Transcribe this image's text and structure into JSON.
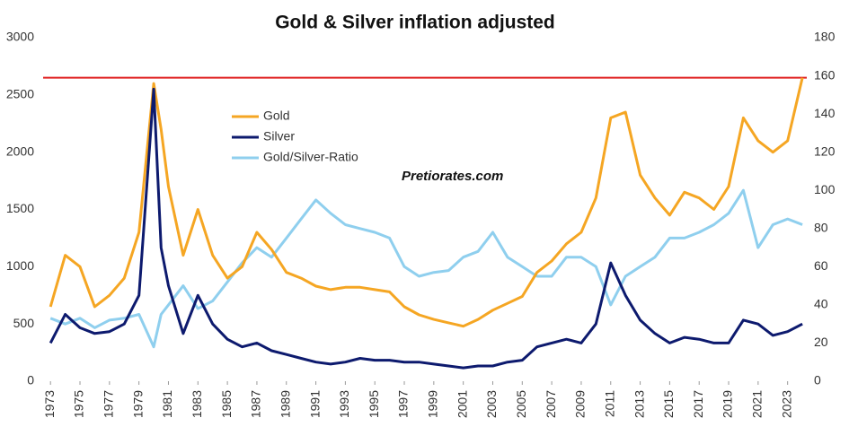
{
  "chart_data": {
    "type": "line",
    "title": "Gold & Silver inflation adjusted",
    "annotation": "Pretiorates.com",
    "x": [
      1973,
      1974,
      1975,
      1976,
      1977,
      1978,
      1979,
      1980,
      1980.5,
      1981,
      1982,
      1983,
      1984,
      1985,
      1986,
      1987,
      1988,
      1989,
      1990,
      1991,
      1992,
      1993,
      1994,
      1995,
      1996,
      1997,
      1998,
      1999,
      2000,
      2001,
      2002,
      2003,
      2004,
      2005,
      2006,
      2007,
      2008,
      2009,
      2010,
      2011,
      2012,
      2013,
      2014,
      2015,
      2016,
      2017,
      2018,
      2019,
      2020,
      2021,
      2022,
      2023,
      2024
    ],
    "series": [
      {
        "name": "Gold",
        "color": "#f5a623",
        "values": [
          650,
          1100,
          1000,
          650,
          750,
          900,
          1300,
          2600,
          2200,
          1700,
          1100,
          1500,
          1100,
          900,
          1000,
          1300,
          1150,
          950,
          900,
          830,
          800,
          820,
          820,
          800,
          780,
          650,
          580,
          540,
          510,
          480,
          540,
          620,
          680,
          740,
          950,
          1050,
          1200,
          1300,
          1600,
          2300,
          2350,
          1800,
          1600,
          1450,
          1650,
          1600,
          1500,
          1700,
          2300,
          2100,
          2000,
          2100,
          2650
        ]
      },
      {
        "name": "Silver",
        "color": "#0d1a6e",
        "axis": "y2",
        "values": [
          20,
          35,
          28,
          25,
          26,
          30,
          45,
          153,
          70,
          50,
          25,
          45,
          30,
          22,
          18,
          20,
          16,
          14,
          12,
          10,
          9,
          10,
          12,
          11,
          11,
          10,
          10,
          9,
          8,
          7,
          8,
          8,
          10,
          11,
          18,
          20,
          22,
          20,
          30,
          62,
          45,
          32,
          25,
          20,
          23,
          22,
          20,
          20,
          32,
          30,
          24,
          26,
          30
        ]
      },
      {
        "name": "Gold/Silver-Ratio",
        "color": "#8fcfee",
        "axis": "y2",
        "values": [
          33,
          30,
          33,
          28,
          32,
          33,
          35,
          18,
          35,
          40,
          50,
          38,
          42,
          52,
          62,
          70,
          65,
          75,
          85,
          95,
          88,
          82,
          80,
          78,
          75,
          60,
          55,
          57,
          58,
          65,
          68,
          78,
          65,
          60,
          55,
          55,
          65,
          65,
          60,
          40,
          55,
          60,
          65,
          75,
          75,
          78,
          82,
          88,
          100,
          70,
          82,
          85,
          82
        ]
      }
    ],
    "xlim": [
      1972.5,
      2024.3
    ],
    "xticks": [
      1973,
      1975,
      1977,
      1979,
      1981,
      1983,
      1985,
      1987,
      1989,
      1991,
      1993,
      1995,
      1997,
      1999,
      2001,
      2003,
      2005,
      2007,
      2009,
      2011,
      2013,
      2015,
      2017,
      2019,
      2021,
      2023
    ],
    "ylim": [
      0,
      3000
    ],
    "yticks": [
      0,
      500,
      1000,
      1500,
      2000,
      2500,
      3000
    ],
    "y2lim": [
      0,
      180
    ],
    "y2ticks": [
      0,
      20,
      40,
      60,
      80,
      100,
      120,
      140,
      160,
      180
    ],
    "reference_line": {
      "value": 2650,
      "color": "#e02020"
    },
    "grid": false
  }
}
